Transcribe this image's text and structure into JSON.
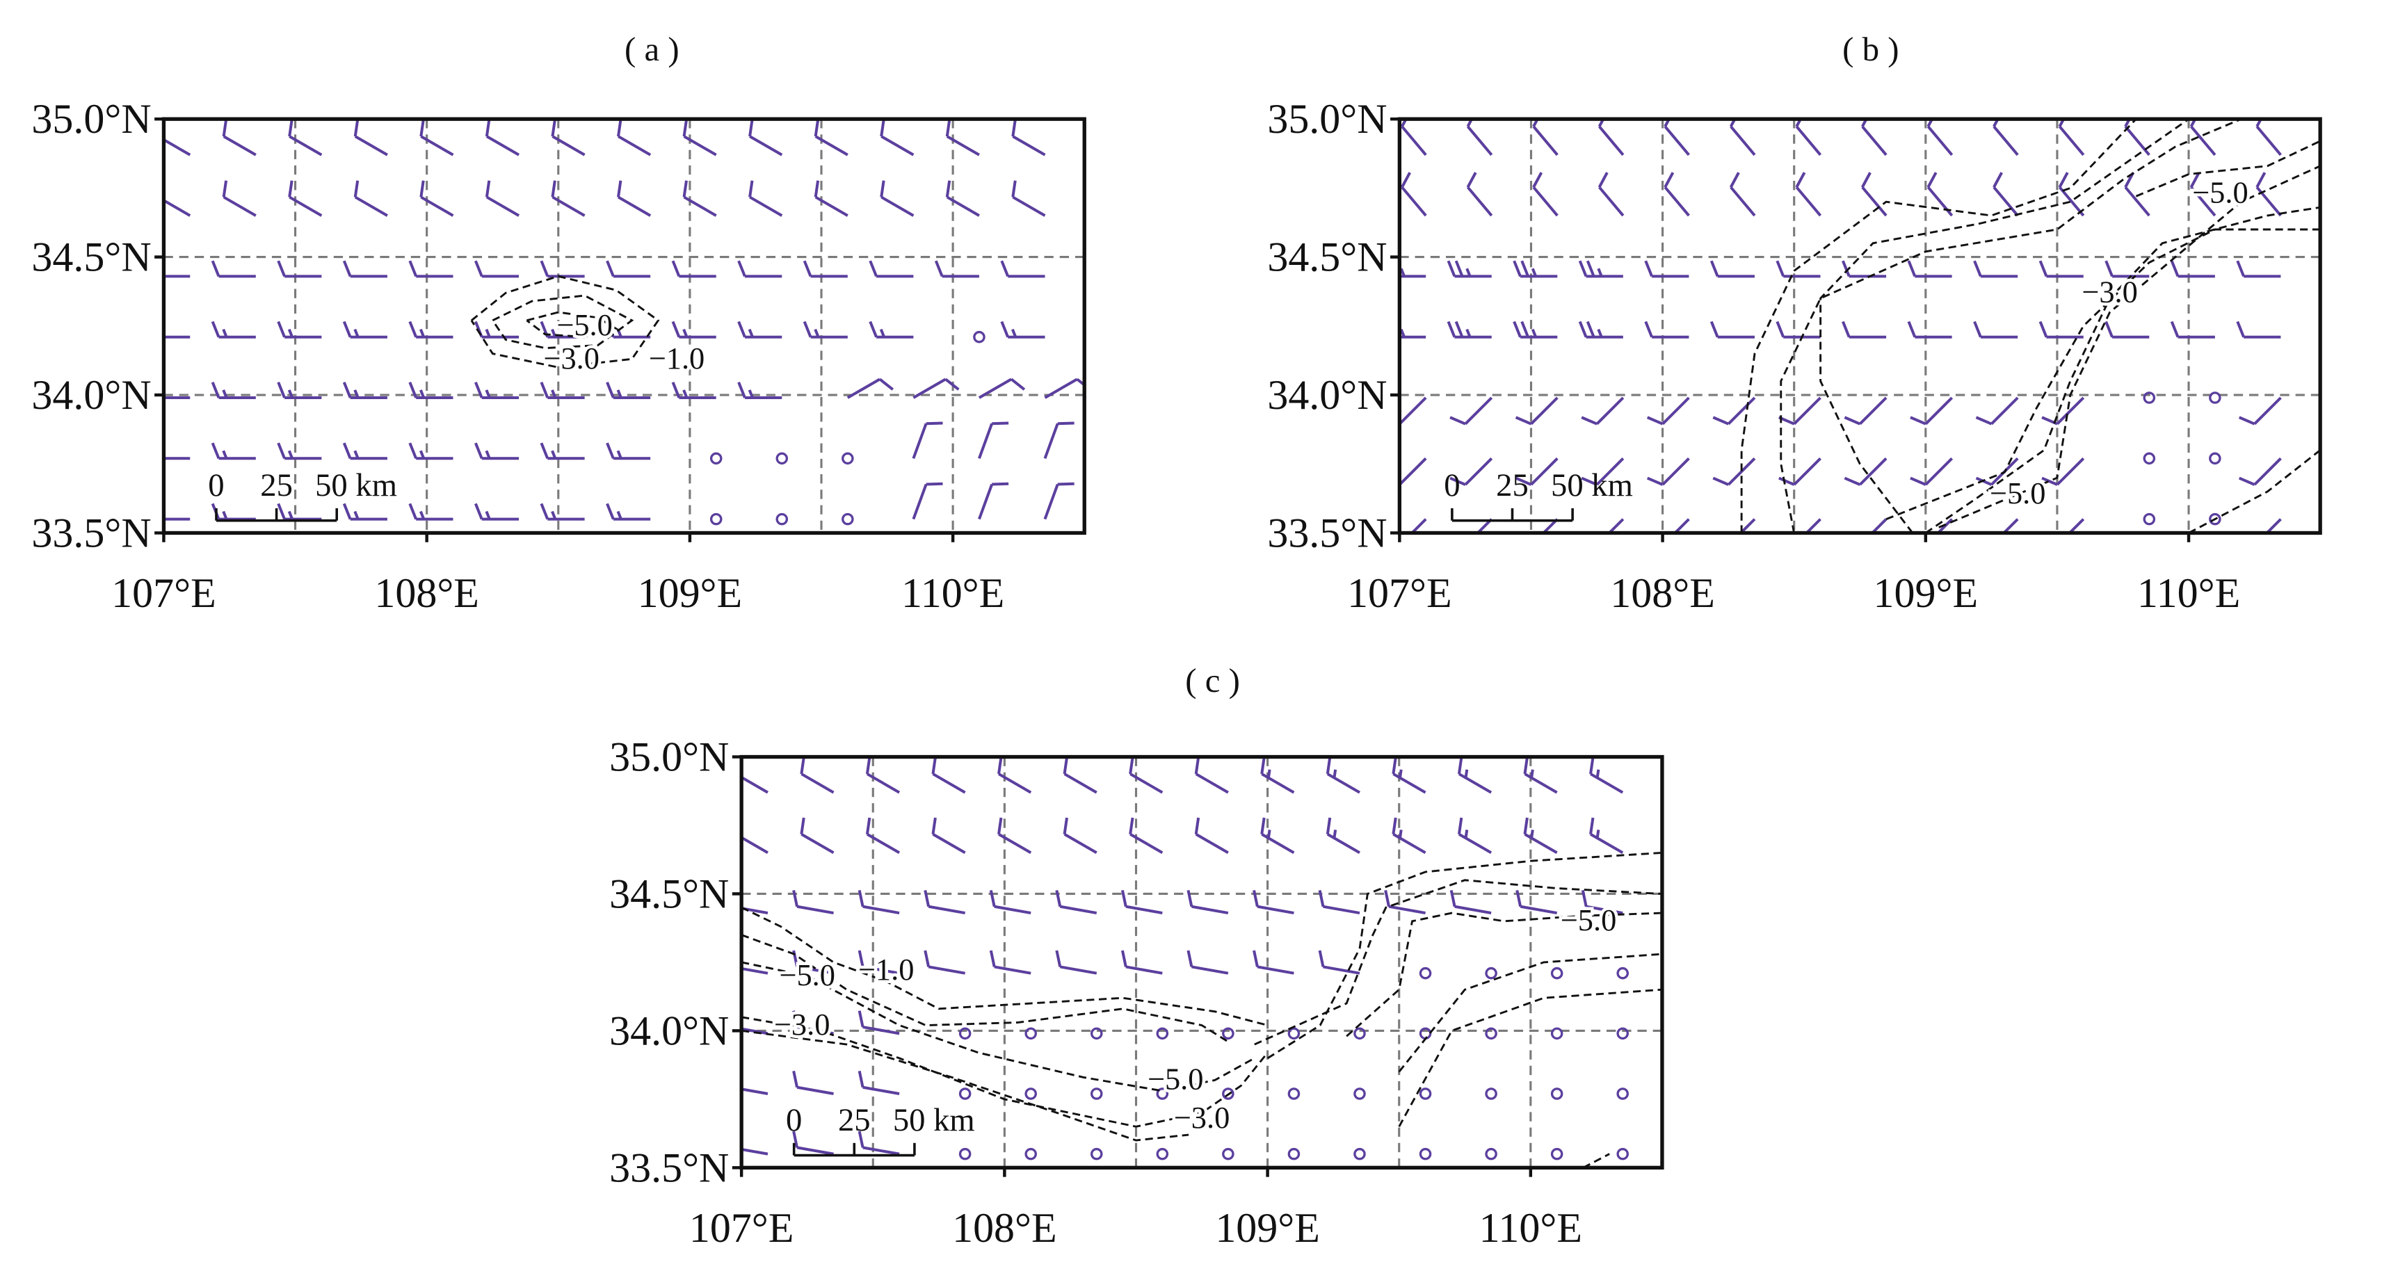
{
  "style": {
    "barb_color": "#5b3f9e",
    "contour_color": "#111111",
    "grid_color": "#7a7a7a",
    "frame_color": "#111111"
  },
  "axes": {
    "x_ticks": [
      "107°E",
      "108°E",
      "109°E",
      "110°E"
    ],
    "y_ticks": [
      "33.5°N",
      "34.0°N",
      "34.5°N",
      "35.0°N"
    ],
    "x_range": [
      107.0,
      110.5
    ],
    "y_range": [
      33.5,
      35.0
    ]
  },
  "scale_bar": {
    "labels": [
      "0",
      "25",
      "50 km"
    ]
  },
  "panels": [
    {
      "id": "a",
      "label": "( a )",
      "contour_labels": [
        {
          "text": "−5.0",
          "lon": 108.6,
          "lat": 34.25
        },
        {
          "text": "−3.0",
          "lon": 108.55,
          "lat": 34.13
        },
        {
          "text": "−1.0",
          "lon": 108.95,
          "lat": 34.13
        }
      ]
    },
    {
      "id": "b",
      "label": "( b )",
      "contour_labels": [
        {
          "text": "−5.0",
          "lon": 110.12,
          "lat": 34.73
        },
        {
          "text": "−3.0",
          "lon": 109.7,
          "lat": 34.37
        },
        {
          "text": "−5.0",
          "lon": 109.35,
          "lat": 33.64
        }
      ]
    },
    {
      "id": "c",
      "label": "( c )",
      "contour_labels": [
        {
          "text": "−5.0",
          "lon": 107.25,
          "lat": 34.2
        },
        {
          "text": "−1.0",
          "lon": 107.55,
          "lat": 34.22
        },
        {
          "text": "−3.0",
          "lon": 107.23,
          "lat": 34.02
        },
        {
          "text": "−5.0",
          "lon": 110.22,
          "lat": 34.4
        },
        {
          "text": "−5.0",
          "lon": 108.65,
          "lat": 33.82
        },
        {
          "text": "−3.0",
          "lon": 108.75,
          "lat": 33.68
        }
      ]
    }
  ]
}
